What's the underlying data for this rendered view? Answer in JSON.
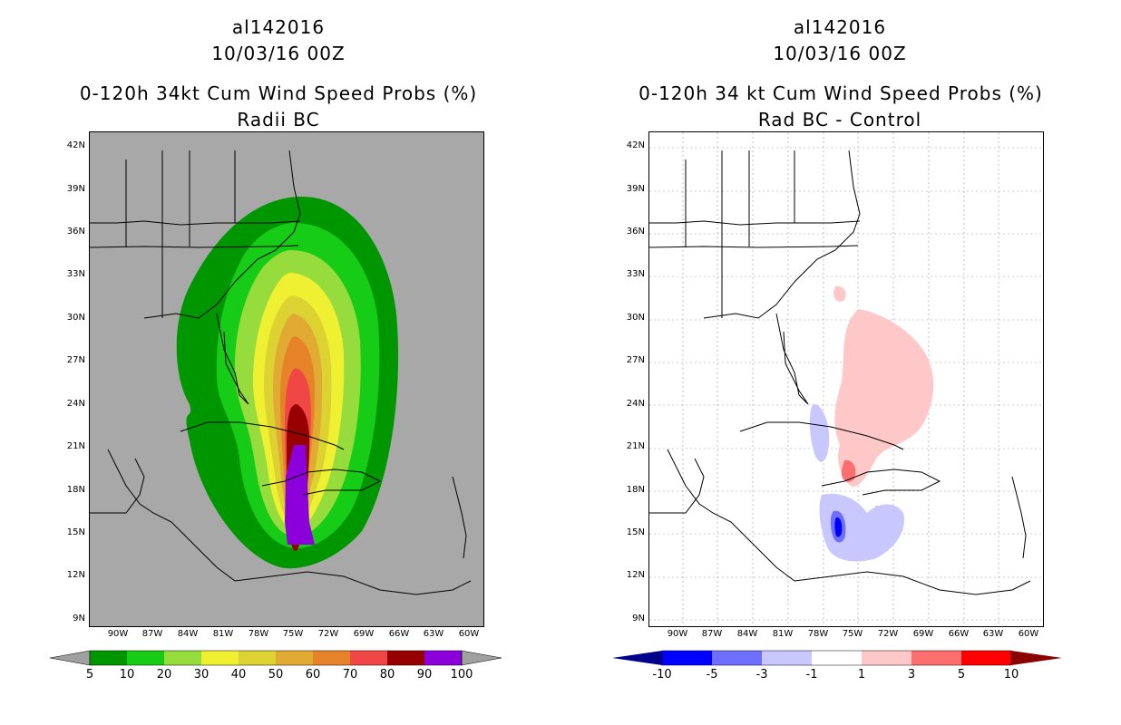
{
  "left_panel": {
    "storm_id": "al142016",
    "datetime": "10/03/16 00Z",
    "title": "0-120h 34kt Cum Wind Speed Probs (%)",
    "subtitle": "Radii BC",
    "lat_labels": [
      "42N",
      "39N",
      "36N",
      "33N",
      "30N",
      "27N",
      "24N",
      "21N",
      "18N",
      "15N",
      "12N",
      "9N"
    ],
    "lon_labels": [
      "90W",
      "87W",
      "84W",
      "81W",
      "78W",
      "75W",
      "72W",
      "69W",
      "66W",
      "63W",
      "60W"
    ],
    "colorbar_labels": [
      "5",
      "10",
      "20",
      "30",
      "40",
      "50",
      "60",
      "70",
      "80",
      "90",
      "100"
    ],
    "colors": {
      "land": "#a8a8a8",
      "c5": "#009600",
      "c10": "#16cc16",
      "c20": "#96dc3c",
      "c30": "#f0f032",
      "c40": "#dcd232",
      "c50": "#e1aa32",
      "c60": "#e68228",
      "c70": "#f04646",
      "c80": "#960000",
      "c90": "#8c00dc",
      "c100": "#a0a0a0"
    }
  },
  "right_panel": {
    "storm_id": "al142016",
    "datetime": "10/03/16 00Z",
    "title": "0-120h 34 kt Cum Wind Speed Probs (%)",
    "subtitle": "Rad BC - Control",
    "lat_labels": [
      "42N",
      "39N",
      "36N",
      "33N",
      "30N",
      "27N",
      "24N",
      "21N",
      "18N",
      "15N",
      "12N",
      "9N"
    ],
    "lon_labels": [
      "90W",
      "87W",
      "84W",
      "81W",
      "78W",
      "75W",
      "72W",
      "69W",
      "66W",
      "63W",
      "60W"
    ],
    "colorbar_labels": [
      "-10",
      "-5",
      "-3",
      "-1",
      "1",
      "3",
      "5",
      "10"
    ],
    "colors": {
      "n10": "#00008c",
      "n5": "#0000ff",
      "n3": "#6e6eff",
      "n1": "#c8c8ff",
      "zero": "#ffffff",
      "p1": "#ffc8c8",
      "p3": "#ff6e6e",
      "p5": "#ff0000",
      "p10": "#8c0000"
    }
  }
}
